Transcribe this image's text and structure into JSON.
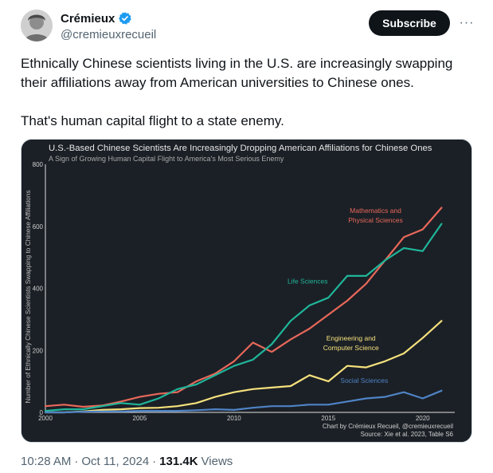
{
  "author": {
    "display_name": "Crémieux",
    "handle": "@cremieuxrecueil",
    "verified_icon": "verified-badge-icon",
    "avatar_icon": "avatar"
  },
  "actions": {
    "subscribe_label": "Subscribe",
    "more_label": "···"
  },
  "tweet": {
    "paragraph1": "Ethnically Chinese scientists living in the U.S. are increasingly swapping their affiliations away from American universities to Chinese ones.",
    "paragraph2": "That's human capital flight to a state enemy."
  },
  "meta": {
    "time": "10:28 AM",
    "separator": "·",
    "date": "Oct 11, 2024",
    "views_count": "131.4K",
    "views_label": "Views"
  },
  "colors": {
    "chart_bg": "#1b2026",
    "accent_blue": "#1d9bf0"
  },
  "chart_data": {
    "type": "line",
    "title": "U.S.-Based Chinese Scientists Are Increasingly Dropping American Affiliations for Chinese Ones",
    "subtitle": "A Sign of Growing Human Capital Flight to America's Most Serious Enemy",
    "ylabel": "Number of Ethnically Chinese Scientists Swapping to Chinese Affiliations",
    "xlabel": "",
    "xlim": [
      2000,
      2021.7
    ],
    "ylim": [
      0,
      800
    ],
    "x_ticks": [
      "2000",
      "2005",
      "2010",
      "2015",
      "2020"
    ],
    "y_ticks": [
      "0",
      "200",
      "400",
      "600",
      "800"
    ],
    "grid": false,
    "footer_line1": "Chart by Crémieux Recueil, @cremieuxrecueil",
    "footer_line2": "Source: Xie et al. 2023, Table S6",
    "x": [
      2000,
      2001,
      2002,
      2003,
      2004,
      2005,
      2006,
      2007,
      2008,
      2009,
      2010,
      2011,
      2012,
      2013,
      2014,
      2015,
      2016,
      2017,
      2018,
      2019,
      2020,
      2021
    ],
    "series": [
      {
        "name": "Mathematics and Physical Sciences",
        "label_lines": [
          "Mathematics and",
          "Physical Sciences"
        ],
        "color": "#e8685a",
        "values": [
          20,
          25,
          18,
          22,
          35,
          50,
          60,
          65,
          100,
          125,
          165,
          225,
          195,
          235,
          270,
          315,
          360,
          415,
          490,
          565,
          590,
          660
        ]
      },
      {
        "name": "Life Sciences",
        "label_lines": [
          "Life Sciences"
        ],
        "color": "#1fb59a",
        "values": [
          5,
          10,
          10,
          20,
          30,
          25,
          45,
          75,
          90,
          120,
          150,
          170,
          220,
          295,
          345,
          370,
          440,
          440,
          490,
          530,
          520,
          608
        ]
      },
      {
        "name": "Engineering and Computer Science",
        "label_lines": [
          "Engineering and",
          "Computer Science"
        ],
        "color": "#f5e17c",
        "values": [
          0,
          0,
          3,
          8,
          10,
          14,
          15,
          20,
          30,
          50,
          65,
          75,
          80,
          85,
          120,
          100,
          150,
          145,
          165,
          190,
          240,
          295
        ]
      },
      {
        "name": "Social Sciences",
        "label_lines": [
          "Social Sciences"
        ],
        "color": "#4f83c6",
        "values": [
          0,
          0,
          2,
          3,
          3,
          5,
          5,
          5,
          7,
          10,
          8,
          15,
          20,
          20,
          25,
          25,
          35,
          45,
          50,
          65,
          45,
          70
        ]
      }
    ]
  }
}
